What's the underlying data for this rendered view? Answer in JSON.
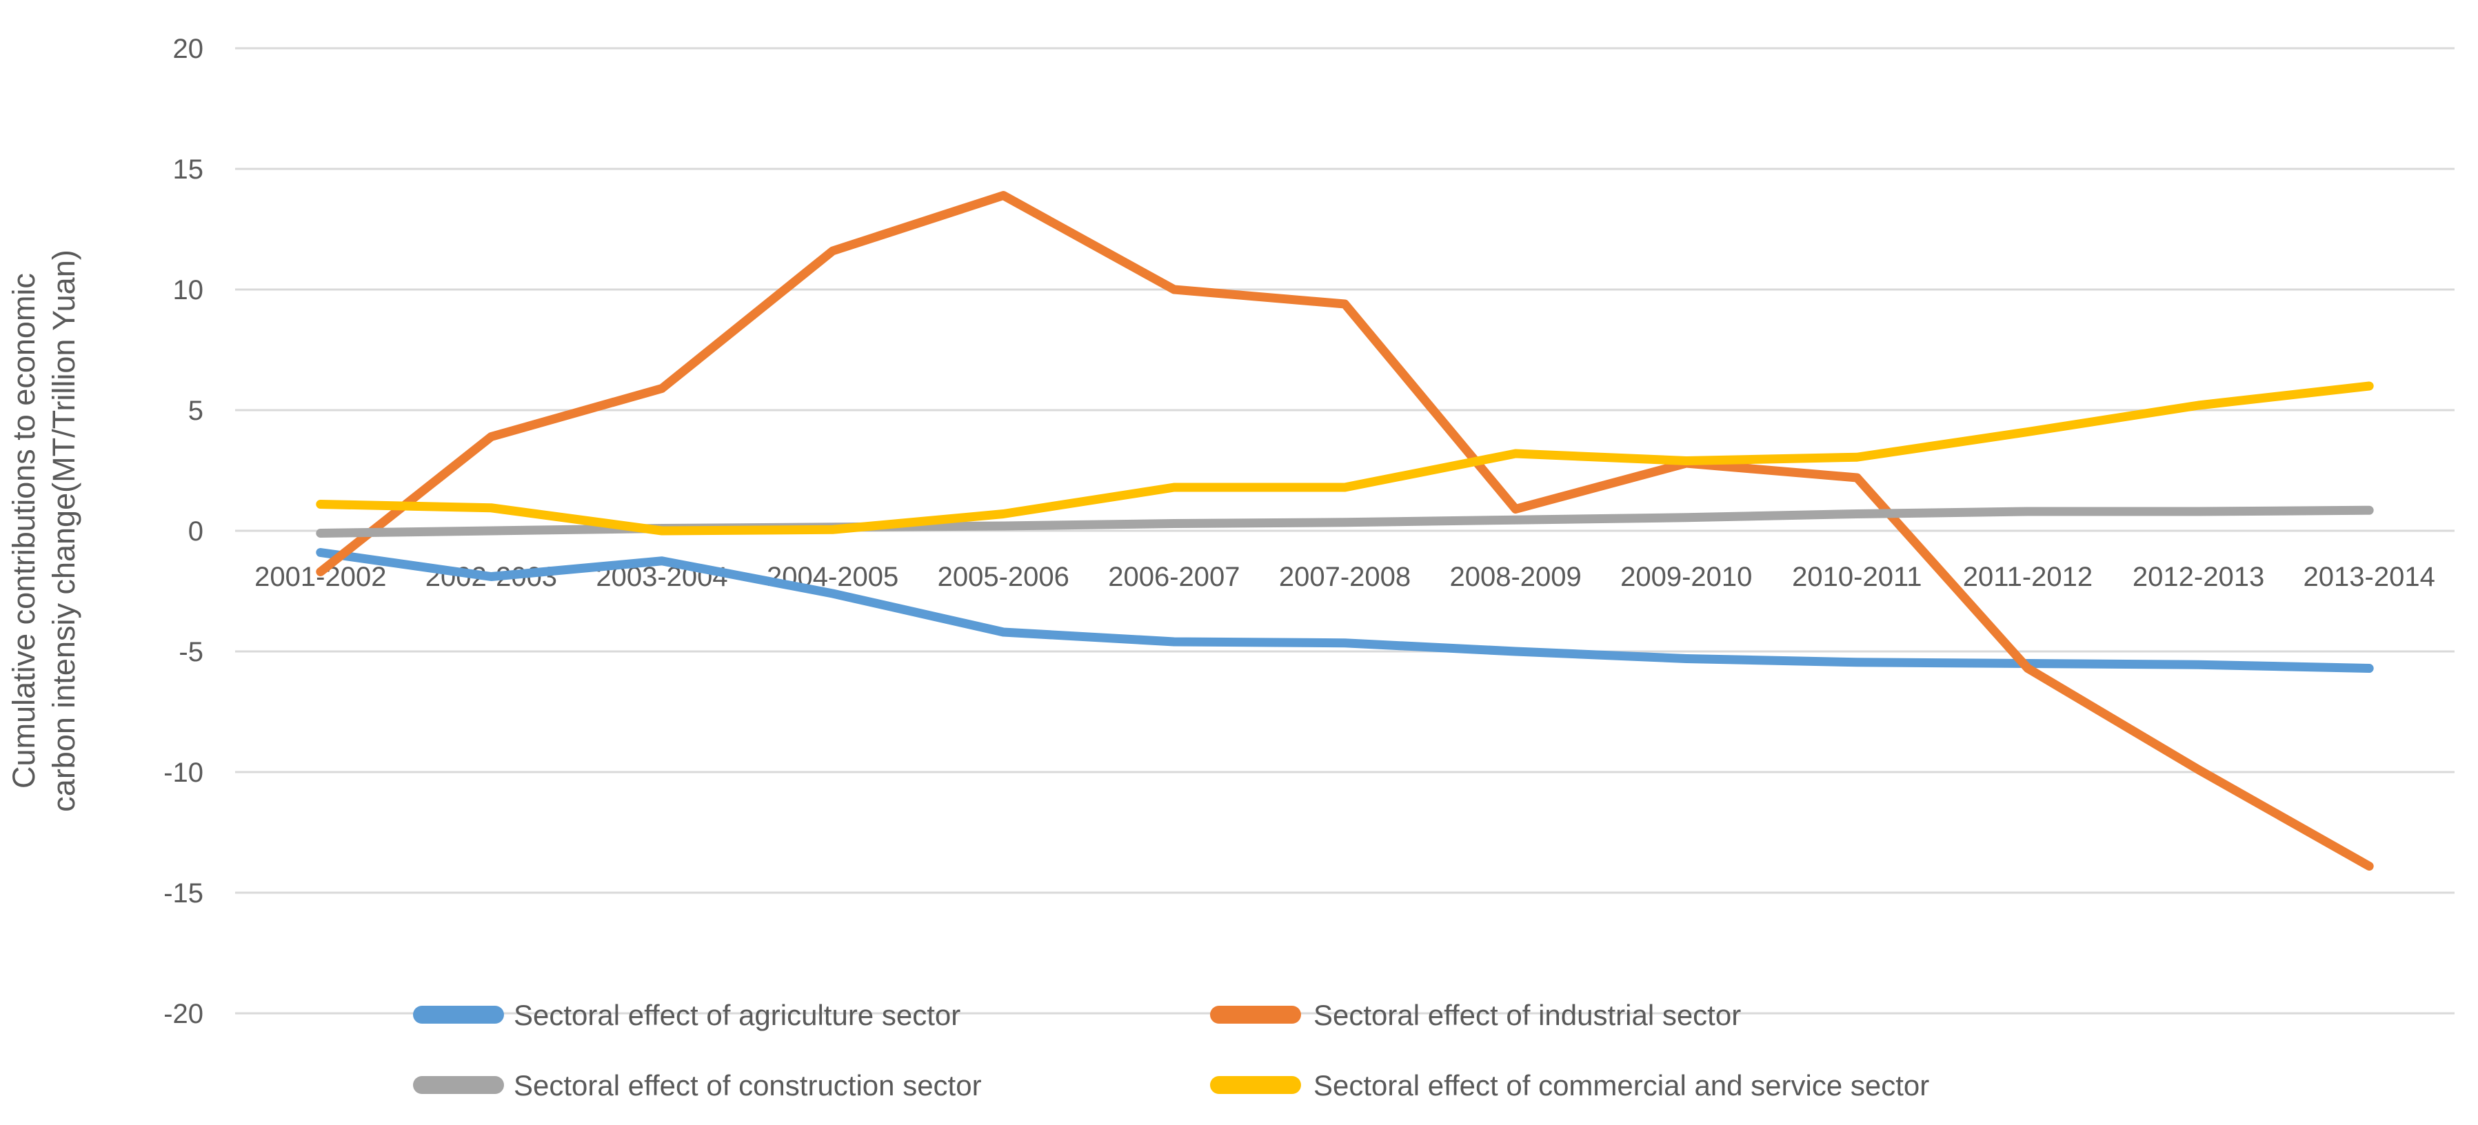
{
  "chart_data": {
    "type": "line",
    "title": "",
    "xlabel": "",
    "ylabel_line1": "Cumulative contributions to economic",
    "ylabel_line2": "carbon intensiy change(MT/Trillion Yuan)",
    "ylim": [
      -20,
      20
    ],
    "yticks": [
      20,
      15,
      10,
      5,
      0,
      -5,
      -10,
      -15,
      -20
    ],
    "grid": true,
    "legend_position": "bottom",
    "categories": [
      "2001-2002",
      "2002-2003",
      "2003-2004",
      "2004-2005",
      "2005-2006",
      "2006-2007",
      "2007-2008",
      "2008-2009",
      "2009-2010",
      "2010-2011",
      "2011-2012",
      "2012-2013",
      "2013-2014"
    ],
    "series": [
      {
        "name": "Sectoral effect of agriculture sector",
        "color": "#5B9BD5",
        "values": [
          -0.9,
          -1.9,
          -1.25,
          -2.6,
          -4.2,
          -4.6,
          -4.65,
          -5.0,
          -5.3,
          -5.45,
          -5.5,
          -5.55,
          -5.7
        ]
      },
      {
        "name": "Sectoral effect of industrial sector",
        "color": "#ED7D31",
        "values": [
          -1.7,
          3.9,
          5.9,
          11.6,
          13.9,
          10.0,
          9.4,
          0.9,
          2.8,
          2.2,
          -5.7,
          -9.9,
          -13.9
        ]
      },
      {
        "name": "Sectoral effect of construction sector",
        "color": "#A5A5A5",
        "values": [
          -0.1,
          0.0,
          0.1,
          0.15,
          0.2,
          0.3,
          0.35,
          0.45,
          0.55,
          0.7,
          0.8,
          0.8,
          0.85
        ]
      },
      {
        "name": "Sectoral effect of commercial and service sector",
        "color": "#FFC000",
        "values": [
          1.1,
          0.95,
          0.0,
          0.05,
          0.7,
          1.8,
          1.8,
          3.2,
          2.9,
          3.05,
          4.1,
          5.2,
          6.0
        ]
      }
    ],
    "colors": {
      "gridline": "#D9D9D9",
      "text": "#595959",
      "background": "#FFFFFF"
    }
  }
}
